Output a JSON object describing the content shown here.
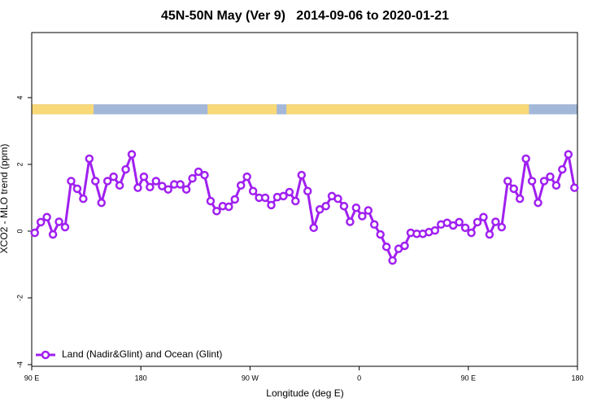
{
  "chart_data": {
    "type": "line",
    "title": "45N-50N May (Ver 9)   2014-09-06 to 2020-01-21",
    "xlabel": "Longitude (deg E)",
    "ylabel": "XCO2 - MLO trend (ppm)",
    "xlim": [
      90,
      540
    ],
    "ylim": [
      -4.05,
      5.95
    ],
    "xticks": [
      {
        "value": 90,
        "label": "90 E"
      },
      {
        "value": 180,
        "label": "180"
      },
      {
        "value": 270,
        "label": "90 W"
      },
      {
        "value": 360,
        "label": "0"
      },
      {
        "value": 450,
        "label": "90 E"
      },
      {
        "value": 540,
        "label": "180"
      }
    ],
    "yticks": [
      -4,
      -2,
      0,
      2,
      4
    ],
    "legend": "bottom-left",
    "surface_band": {
      "ylim": [
        3.5,
        3.8
      ],
      "land_color": "#f8d877",
      "ocean_color": "#a3b8d9",
      "land": [
        [
          90,
          141
        ],
        [
          235,
          292
        ],
        [
          300,
          500
        ]
      ]
    },
    "x": [
      92.5,
      97.5,
      102.5,
      107.5,
      112.5,
      117.5,
      122.5,
      127.5,
      132.5,
      137.5,
      142.5,
      147.5,
      152.5,
      157.5,
      162.5,
      167.5,
      172.5,
      177.5,
      182.5,
      187.5,
      192.5,
      197.5,
      202.5,
      207.5,
      212.5,
      217.5,
      222.5,
      227.5,
      232.5,
      237.5,
      242.5,
      247.5,
      252.5,
      257.5,
      262.5,
      267.5,
      272.5,
      277.5,
      282.5,
      287.5,
      292.5,
      297.5,
      302.5,
      307.5,
      312.5,
      317.5,
      322.5,
      327.5,
      332.5,
      337.5,
      342.5,
      347.5,
      352.5,
      357.5,
      362.5,
      367.5,
      372.5,
      377.5,
      382.5,
      387.5,
      392.5,
      397.5,
      402.5,
      407.5,
      412.5,
      417.5,
      422.5,
      427.5,
      432.5,
      437.5,
      442.5,
      447.5,
      452.5,
      457.5,
      462.5,
      467.5,
      472.5,
      477.5,
      482.5,
      487.5,
      492.5,
      497.5,
      502.5,
      507.5,
      512.5,
      517.5,
      522.5,
      527.5,
      532.5,
      537.5
    ],
    "series": [
      {
        "name": "Land (Nadir&Glint) and Ocean (Glint)",
        "color": "#a020f0",
        "values": [
          -0.05,
          0.27,
          0.42,
          -0.1,
          0.28,
          0.12,
          1.5,
          1.27,
          0.97,
          2.17,
          1.5,
          0.85,
          1.5,
          1.63,
          1.37,
          1.85,
          2.3,
          1.3,
          1.63,
          1.32,
          1.5,
          1.35,
          1.25,
          1.4,
          1.4,
          1.25,
          1.58,
          1.78,
          1.68,
          0.9,
          0.6,
          0.75,
          0.73,
          0.95,
          1.37,
          1.63,
          1.2,
          1.0,
          1.0,
          0.78,
          1.02,
          1.05,
          1.17,
          0.9,
          1.68,
          1.2,
          0.1,
          0.65,
          0.75,
          1.05,
          0.97,
          0.75,
          0.28,
          0.7,
          0.45,
          0.62,
          0.2,
          -0.1,
          -0.47,
          -0.88,
          -0.53,
          -0.44,
          -0.05,
          -0.08,
          -0.08,
          -0.03,
          0.02,
          0.2,
          0.25,
          0.17,
          0.27,
          0.1,
          -0.05,
          0.27,
          0.42,
          -0.1,
          0.28,
          0.12,
          1.5,
          1.27,
          0.97,
          2.17,
          1.5,
          0.85,
          1.5,
          1.63,
          1.37,
          1.85,
          2.3,
          1.3
        ]
      }
    ]
  }
}
